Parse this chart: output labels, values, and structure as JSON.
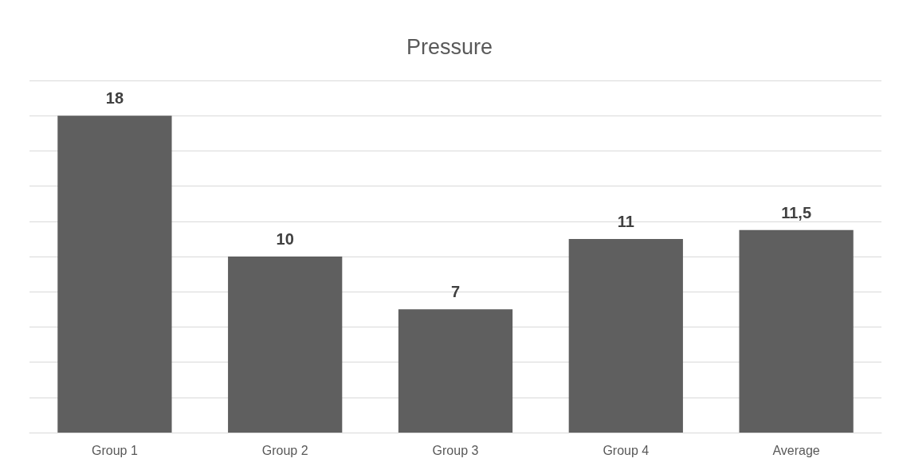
{
  "chart_data": {
    "type": "bar",
    "title": "Pressure",
    "categories": [
      "Group 1",
      "Group 2",
      "Group 3",
      "Group 4",
      "Average"
    ],
    "values": [
      18,
      10,
      7,
      11,
      11.5
    ],
    "value_labels": [
      "18",
      "10",
      "7",
      "11",
      "11,5"
    ],
    "color": "#5f5f5f",
    "ylim": [
      0,
      20
    ],
    "yticks": [
      {
        "value": 0,
        "label": null
      },
      {
        "value": 2,
        "label": null
      },
      {
        "value": 4,
        "label": null
      },
      {
        "value": 6,
        "label": null
      },
      {
        "value": 8,
        "label": null
      },
      {
        "value": 10,
        "label": null
      },
      {
        "value": 12,
        "label": null
      },
      {
        "value": 14,
        "label": null
      },
      {
        "value": 16,
        "label": null
      },
      {
        "value": 18,
        "label": null
      },
      {
        "value": 20,
        "label": null
      }
    ],
    "grid": "y",
    "tick_labels": "x"
  }
}
